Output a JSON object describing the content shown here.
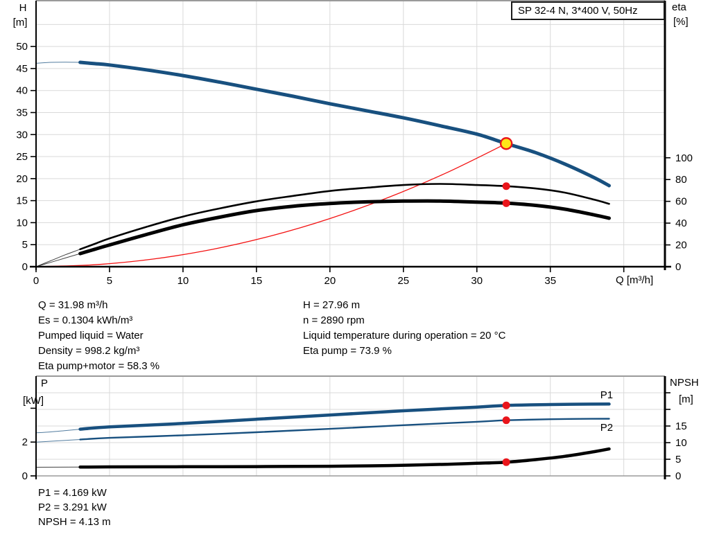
{
  "title_box": {
    "text": "SP 32-4 N, 3*400 V, 50Hz"
  },
  "info_top_left": [
    "Q = 31.98 m³/h",
    "Es = 0.1304 kWh/m³",
    "Pumped liquid = Water",
    "Density = 998.2 kg/m³",
    "Eta pump+motor = 58.3 %"
  ],
  "info_top_right": [
    "H = 27.96 m",
    "n = 2890 rpm",
    "Liquid temperature during operation = 20 °C",
    "Eta pump = 73.9 %"
  ],
  "info_bottom": [
    "P1 = 4.169 kW",
    "P2 = 3.291 kW",
    "NPSH = 4.13 m"
  ],
  "colors": {
    "curve_blue": "#18507f",
    "curve_black": "#000000",
    "curve_red": "#f31111",
    "dot_red": "#e9151b",
    "dot_yellow": "#ffe619",
    "grid": "#d9d9d9",
    "frame_gray": "#9a9a9a",
    "axis_black": "#000000",
    "label_blue": "#18507f"
  },
  "chart_data": [
    {
      "name": "qh-eta-chart",
      "type": "line",
      "title": "SP 32-4 N, 3*400 V, 50Hz",
      "axes": {
        "x": {
          "label": "Q [m³/h]",
          "range": [
            0,
            42.8
          ],
          "ticks": [
            0,
            5,
            10,
            15,
            20,
            25,
            30,
            35
          ],
          "unlabeled_ticks": [
            40
          ],
          "grid_values": [
            5,
            10,
            15,
            20,
            25,
            30,
            35,
            40
          ]
        },
        "y_left": {
          "label": [
            "H",
            "[m]"
          ],
          "range": [
            0,
            60.4
          ],
          "ticks": [
            0,
            5,
            10,
            15,
            20,
            25,
            30,
            35,
            40,
            45,
            50
          ],
          "unlabeled_ticks": []
        },
        "y_right": {
          "label": [
            "eta",
            "[%]"
          ],
          "range": [
            0,
            244.2
          ],
          "ticks": [
            0,
            20,
            40,
            60,
            80,
            100
          ],
          "unlabeled_ticks": []
        },
        "y_grid": {
          "axis": "left",
          "values": [
            5,
            10,
            15,
            20,
            25,
            30,
            35,
            40,
            45,
            50,
            55
          ]
        }
      },
      "series": [
        {
          "name": "system-curve",
          "label": "System curve",
          "axis": "left",
          "color": "red",
          "width": 1.3,
          "x": [
            0,
            4,
            8,
            12,
            16,
            20,
            24,
            28,
            32
          ],
          "y": [
            0,
            0.44,
            1.75,
            3.94,
            7.0,
            10.93,
            15.74,
            21.43,
            27.96
          ]
        },
        {
          "name": "eta-pump-motor-curve",
          "label": "Eta pump+motor",
          "axis": "right",
          "color": "black",
          "width": 5,
          "thin_until": 3,
          "x": [
            0,
            1,
            2,
            3,
            4,
            5,
            7.5,
            10,
            12.5,
            15,
            17.5,
            20,
            22.5,
            25,
            27.5,
            30,
            32,
            34,
            36,
            38,
            39
          ],
          "y": [
            0,
            4,
            8,
            12,
            16,
            20,
            29.5,
            38.5,
            45.5,
            51.5,
            55.5,
            58,
            59.5,
            60.2,
            60.3,
            59.3,
            58.3,
            56.3,
            52.8,
            47.5,
            44.5
          ]
        },
        {
          "name": "eta-pump-curve",
          "label": "Eta pump",
          "axis": "right",
          "color": "black",
          "width": 2.6,
          "thin_until": 3,
          "x": [
            0,
            1,
            2,
            3,
            4,
            5,
            7.5,
            10,
            12.5,
            15,
            17.5,
            20,
            22.5,
            25,
            27.5,
            30,
            32,
            34,
            36,
            38,
            39
          ],
          "y": [
            0,
            5.5,
            11,
            16,
            21,
            26,
            36.5,
            46,
            53.5,
            60,
            65,
            69.5,
            72.5,
            75,
            76,
            75,
            73.9,
            71.8,
            68,
            61.5,
            57.7
          ]
        },
        {
          "name": "h-curve",
          "label": "H",
          "axis": "left",
          "color": "blue",
          "width": 5,
          "thin_until": 3,
          "x": [
            0,
            1,
            2,
            3,
            4,
            5,
            7.5,
            10,
            12.5,
            15,
            17.5,
            20,
            22.5,
            25,
            27.5,
            30,
            32,
            34,
            36,
            38,
            39
          ],
          "y": [
            46.2,
            46.4,
            46.45,
            46.4,
            46.1,
            45.8,
            44.7,
            43.4,
            41.9,
            40.3,
            38.7,
            37.0,
            35.4,
            33.8,
            32.0,
            30.1,
            27.96,
            25.9,
            23.3,
            20.2,
            18.4
          ]
        }
      ],
      "points": [
        {
          "name": "duty-point",
          "axis": "left",
          "x": 32,
          "y": 27.96,
          "style": "yellow-ring"
        },
        {
          "name": "eta-pump-duty-point",
          "axis": "right",
          "x": 32,
          "y": 73.9,
          "style": "red-dot"
        },
        {
          "name": "eta-pump-motor-duty-point",
          "axis": "right",
          "x": 32,
          "y": 58.3,
          "style": "red-dot"
        }
      ],
      "annotations": []
    },
    {
      "name": "power-npsh-chart",
      "type": "line",
      "title": "",
      "axes": {
        "x": {
          "label": "",
          "range": [
            0,
            42.8
          ],
          "ticks": [],
          "unlabeled_ticks": [],
          "grid_values": [
            5,
            10,
            15,
            20,
            25,
            30,
            35,
            40
          ]
        },
        "y_left": {
          "label": [
            "P",
            "[kW]"
          ],
          "range": [
            0,
            5.9
          ],
          "ticks": [
            0,
            2
          ],
          "unlabeled_ticks": [
            4
          ]
        },
        "y_right": {
          "label": [
            "NPSH",
            "[m]"
          ],
          "range": [
            0,
            30
          ],
          "ticks": [
            0,
            5,
            10,
            15
          ],
          "unlabeled_ticks": [
            20,
            25
          ]
        },
        "y_grid": {
          "axis": "right",
          "values": [
            5,
            10,
            15,
            20,
            25
          ]
        }
      },
      "series": [
        {
          "name": "npsh-curve",
          "label": "NPSH",
          "axis": "right",
          "color": "black",
          "width": 4.5,
          "thin_until": 3,
          "x": [
            0,
            3,
            5,
            10,
            15,
            20,
            24,
            28,
            30,
            32,
            34,
            36,
            38,
            39
          ],
          "y": [
            2.6,
            2.65,
            2.7,
            2.75,
            2.8,
            2.9,
            3.1,
            3.5,
            3.8,
            4.13,
            4.9,
            5.9,
            7.3,
            8.1
          ]
        },
        {
          "name": "p2-curve",
          "label": "P2",
          "axis": "left",
          "color": "blue",
          "width": 2.4,
          "thin_until": 3,
          "x": [
            0,
            1,
            2,
            3,
            5,
            10,
            15,
            20,
            25,
            30,
            32,
            35,
            37,
            39
          ],
          "y": [
            2.0,
            2.05,
            2.1,
            2.15,
            2.25,
            2.4,
            2.58,
            2.78,
            3.0,
            3.2,
            3.291,
            3.35,
            3.37,
            3.38
          ]
        },
        {
          "name": "p1-curve",
          "label": "P1",
          "axis": "left",
          "color": "blue",
          "width": 4.5,
          "thin_until": 3,
          "x": [
            0,
            1,
            2,
            3,
            5,
            10,
            15,
            20,
            25,
            30,
            32,
            35,
            37,
            39
          ],
          "y": [
            2.55,
            2.6,
            2.68,
            2.76,
            2.9,
            3.1,
            3.35,
            3.6,
            3.85,
            4.07,
            4.169,
            4.22,
            4.24,
            4.25
          ]
        }
      ],
      "points": [
        {
          "name": "p1-duty-point",
          "axis": "left",
          "x": 32,
          "y": 4.169,
          "style": "red-dot"
        },
        {
          "name": "p2-duty-point",
          "axis": "left",
          "x": 32,
          "y": 3.291,
          "style": "red-dot"
        },
        {
          "name": "npsh-duty-point",
          "axis": "right",
          "x": 32,
          "y": 4.13,
          "style": "red-dot"
        }
      ],
      "annotations": [
        {
          "name": "p1-label",
          "text": "P1",
          "axis": "left",
          "x": 38.4,
          "y": 4.59
        },
        {
          "name": "p2-label",
          "text": "P2",
          "axis": "left",
          "x": 38.4,
          "y": 2.66
        }
      ]
    }
  ]
}
